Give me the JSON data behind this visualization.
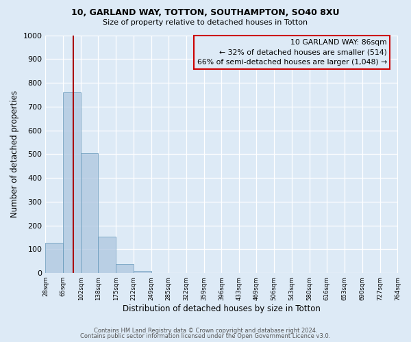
{
  "title": "10, GARLAND WAY, TOTTON, SOUTHAMPTON, SO40 8XU",
  "subtitle": "Size of property relative to detached houses in Totton",
  "xlabel": "Distribution of detached houses by size in Totton",
  "ylabel": "Number of detached properties",
  "bar_values": [
    128,
    760,
    505,
    152,
    38,
    10,
    0,
    0,
    0,
    0,
    0,
    0,
    0,
    0,
    0,
    0,
    0,
    0,
    0,
    0
  ],
  "bin_labels": [
    "28sqm",
    "65sqm",
    "102sqm",
    "138sqm",
    "175sqm",
    "212sqm",
    "249sqm",
    "285sqm",
    "322sqm",
    "359sqm",
    "396sqm",
    "433sqm",
    "469sqm",
    "506sqm",
    "543sqm",
    "580sqm",
    "616sqm",
    "653sqm",
    "690sqm",
    "727sqm",
    "764sqm"
  ],
  "bin_edges": [
    28,
    65,
    102,
    138,
    175,
    212,
    249,
    285,
    322,
    359,
    396,
    433,
    469,
    506,
    543,
    580,
    616,
    653,
    690,
    727,
    764
  ],
  "bar_color": "#aec6df",
  "bar_edge_color": "#6699bb",
  "bar_alpha": 0.75,
  "ylim": [
    0,
    1000
  ],
  "yticks": [
    0,
    100,
    200,
    300,
    400,
    500,
    600,
    700,
    800,
    900,
    1000
  ],
  "red_line_x": 86,
  "vline_color": "#aa0000",
  "annotation_line1": "10 GARLAND WAY: 86sqm",
  "annotation_line2": "← 32% of detached houses are smaller (514)",
  "annotation_line3": "66% of semi-detached houses are larger (1,048) →",
  "annotation_box_color": "#cc0000",
  "bg_color": "#ddeaf6",
  "grid_color": "#ffffff",
  "footer1": "Contains HM Land Registry data © Crown copyright and database right 2024.",
  "footer2": "Contains public sector information licensed under the Open Government Licence v3.0."
}
